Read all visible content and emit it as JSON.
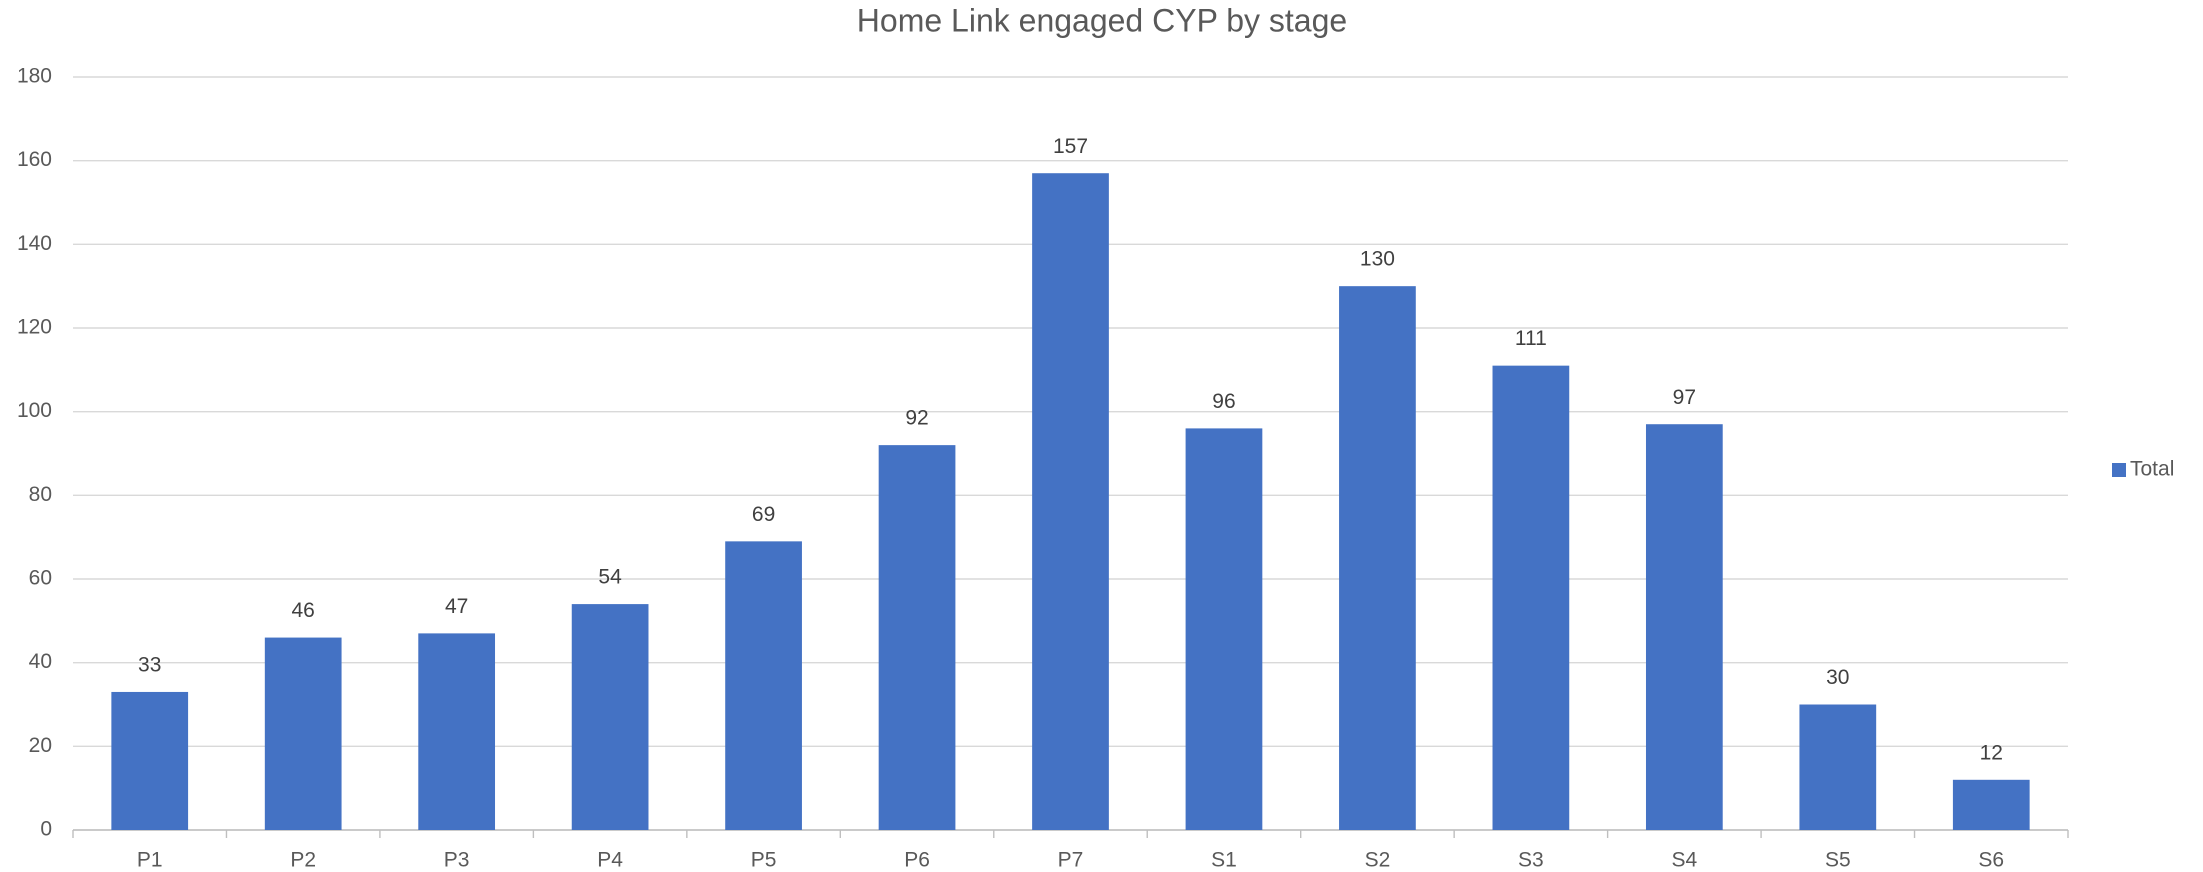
{
  "chart_data": {
    "type": "bar",
    "title": "Home Link engaged CYP by stage",
    "categories": [
      "P1",
      "P2",
      "P3",
      "P4",
      "P5",
      "P6",
      "P7",
      "S1",
      "S2",
      "S3",
      "S4",
      "S5",
      "S6"
    ],
    "series": [
      {
        "name": "Total",
        "color": "#4472c4",
        "values": [
          33,
          46,
          47,
          54,
          69,
          92,
          157,
          96,
          130,
          111,
          97,
          30,
          12
        ]
      }
    ],
    "ylim": [
      0,
      180
    ],
    "yticks": [
      0,
      20,
      40,
      60,
      80,
      100,
      120,
      140,
      160,
      180
    ],
    "grid": true,
    "legend": "right"
  }
}
